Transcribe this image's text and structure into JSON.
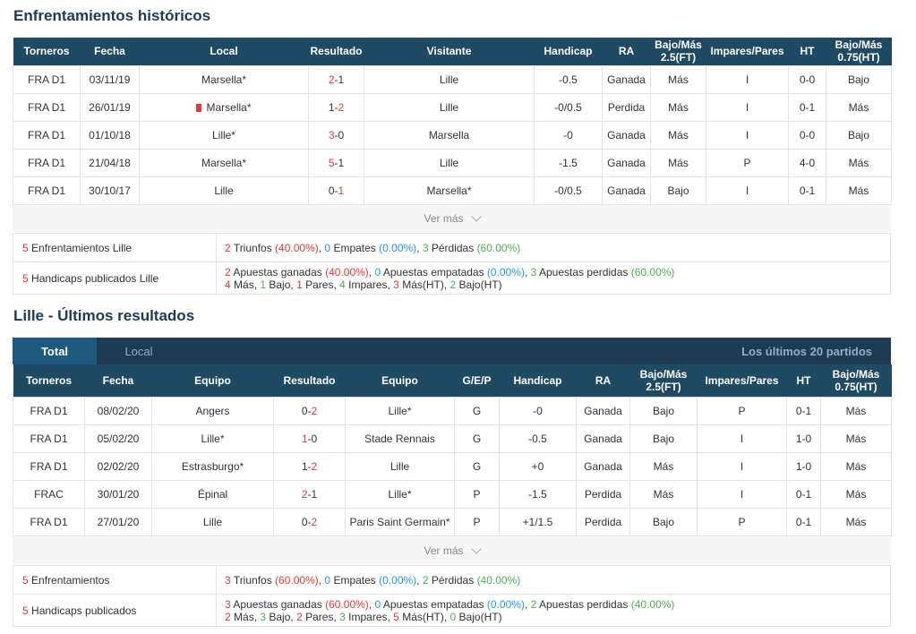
{
  "h2h": {
    "title": "Enfrentamientos históricos",
    "headers": [
      "Torneros",
      "Fecha",
      "Local",
      "Resultado",
      "Visitante",
      "Handicap",
      "RA",
      "Bajo/Más 2.5(FT)",
      "Impares/Pares",
      "HT",
      "Bajo/Más 0.75(HT)"
    ],
    "rows": [
      {
        "league": "FRA D1",
        "date": "03/11/19",
        "home": "Marsella*",
        "home_red": true,
        "home_flag": false,
        "score_h": "2",
        "score_a": "1",
        "away": "Lille",
        "away_red": false,
        "hcp": "-0.5",
        "ra": "Ganada",
        "ou": "Más",
        "oe": "I",
        "ht": "0-0",
        "ou2": "Bajo"
      },
      {
        "league": "FRA D1",
        "date": "26/01/19",
        "home": "Marsella*",
        "home_red": false,
        "home_flag": true,
        "score_h": "1",
        "score_a": "2",
        "away": "Lille",
        "away_red": true,
        "hcp": "-0/0.5",
        "ra": "Perdida",
        "ou": "Más",
        "oe": "I",
        "ht": "0-1",
        "ou2": "Más"
      },
      {
        "league": "FRA D1",
        "date": "01/10/18",
        "home": "Lille*",
        "home_red": true,
        "home_flag": false,
        "score_h": "3",
        "score_a": "0",
        "away": "Marsella",
        "away_red": false,
        "hcp": "-0",
        "ra": "Ganada",
        "ou": "Más",
        "oe": "I",
        "ht": "0-0",
        "ou2": "Bajo"
      },
      {
        "league": "FRA D1",
        "date": "21/04/18",
        "home": "Marsella*",
        "home_red": true,
        "home_flag": false,
        "score_h": "5",
        "score_a": "1",
        "away": "Lille",
        "away_red": false,
        "hcp": "-1.5",
        "ra": "Ganada",
        "ou": "Más",
        "oe": "P",
        "ht": "4-0",
        "ou2": "Más"
      },
      {
        "league": "FRA D1",
        "date": "30/10/17",
        "home": "Lille",
        "home_red": false,
        "home_flag": false,
        "score_h": "0",
        "score_a": "1",
        "away": "Marsella*",
        "away_red": true,
        "hcp": "-0/0.5",
        "ra": "Ganada",
        "ou": "Bajo",
        "oe": "I",
        "ht": "0-1",
        "ou2": "Más"
      }
    ],
    "ver_mas": "Ver más",
    "summary": {
      "row1_label_num": "5",
      "row1_label": " Enfrentamientos Lille",
      "row1_line": {
        "a": "2",
        "a_t": " Triunfos ",
        "a_p": "(40.00%)",
        "b": "0",
        "b_t": " Empates ",
        "b_p": "(0.00%)",
        "c": "3",
        "c_t": " Pérdidas ",
        "c_p": "(60.00%)"
      },
      "row2_label_num": "5",
      "row2_label": " Handicaps publicados Lille",
      "row2_line1": {
        "a": "2",
        "a_t": " Apuestas ganadas ",
        "a_p": "(40.00%)",
        "b": "0",
        "b_t": " Apuestas empatadas ",
        "b_p": "(0.00%)",
        "c": "3",
        "c_t": " Apuestas perdidas ",
        "c_p": "(60.00%)"
      },
      "row2_line2": {
        "n1": "4",
        "t1": " Más, ",
        "n2": "1",
        "t2": " Bajo, ",
        "n3": "1",
        "t3": " Pares, ",
        "n4": "4",
        "t4": " Impares, ",
        "n5": "3",
        "t5": " Más(HT), ",
        "n6": "2",
        "t6": " Bajo(HT)"
      }
    }
  },
  "recent": {
    "title": "Lille - Últimos resultados",
    "tab_total": "Total",
    "tab_local": "Local",
    "tab_right": "Los últimos 20 partidos",
    "headers": [
      "Torneros",
      "Fecha",
      "Equipo",
      "Resultado",
      "Equipo",
      "G/E/P",
      "Handicap",
      "RA",
      "Bajo/Más 2.5(FT)",
      "Impares/Pares",
      "HT",
      "Bajo/Más 0.75(HT)"
    ],
    "rows": [
      {
        "league": "FRA D1",
        "date": "08/02/20",
        "home": "Angers",
        "home_red": false,
        "score_h": "0",
        "score_a": "2",
        "away": "Lille*",
        "away_red": true,
        "gep": "G",
        "hcp": "-0",
        "ra": "Ganada",
        "ou": "Bajo",
        "oe": "P",
        "ht": "0-1",
        "ou2": "Más"
      },
      {
        "league": "FRA D1",
        "date": "05/02/20",
        "home": "Lille*",
        "home_red": true,
        "score_h": "1",
        "score_a": "0",
        "away": "Stade Rennais",
        "away_red": false,
        "gep": "G",
        "hcp": "-0.5",
        "ra": "Ganada",
        "ou": "Bajo",
        "oe": "I",
        "ht": "1-0",
        "ou2": "Más"
      },
      {
        "league": "FRA D1",
        "date": "02/02/20",
        "home": "Estrasburgo*",
        "home_red": false,
        "score_h": "1",
        "score_a": "2",
        "away": "Lille",
        "away_red": true,
        "gep": "G",
        "hcp": "+0",
        "ra": "Ganada",
        "ou": "Más",
        "oe": "I",
        "ht": "1-0",
        "ou2": "Más"
      },
      {
        "league": "FRAC",
        "date": "30/01/20",
        "home": "Épinal",
        "home_red": false,
        "score_h": "2",
        "score_a": "1",
        "away": "Lille*",
        "away_red": false,
        "gep": "P",
        "hcp": "-1.5",
        "ra": "Perdida",
        "ou": "Más",
        "oe": "I",
        "ht": "0-1",
        "ou2": "Más"
      },
      {
        "league": "FRA D1",
        "date": "27/01/20",
        "home": "Lille",
        "home_red": false,
        "score_h": "0",
        "score_a": "2",
        "away": "Paris Saint Germain*",
        "away_red": false,
        "gep": "P",
        "hcp": "+1/1.5",
        "ra": "Perdida",
        "ou": "Bajo",
        "oe": "P",
        "ht": "0-1",
        "ou2": "Más"
      }
    ],
    "ver_mas": "Ver más",
    "summary": {
      "row1_label_num": "5",
      "row1_label": " Enfrentamientos",
      "row1_line": {
        "a": "3",
        "a_t": " Triunfos ",
        "a_p": "(60.00%)",
        "b": "0",
        "b_t": " Empates ",
        "b_p": "(0.00%)",
        "c": "2",
        "c_t": " Pérdidas ",
        "c_p": "(40.00%)"
      },
      "row2_label_num": "5",
      "row2_label": " Handicaps publicados",
      "row2_line1": {
        "a": "3",
        "a_t": " Apuestas ganadas ",
        "a_p": "(60.00%)",
        "b": "0",
        "b_t": " Apuestas empatadas ",
        "b_p": "(0.00%)",
        "c": "2",
        "c_t": " Apuestas perdidas ",
        "c_p": "(40.00%)"
      },
      "row2_line2": {
        "n1": "2",
        "t1": " Más, ",
        "n2": "3",
        "t2": " Bajo, ",
        "n3": "2",
        "t3": " Pares, ",
        "n4": "3",
        "t4": " Impares, ",
        "n5": "5",
        "t5": " Más(HT), ",
        "n6": "0",
        "t6": " Bajo(HT)"
      }
    }
  },
  "colors": {
    "header_bg": "#1f4a63",
    "win": "#e53935",
    "loss": "#4caf50",
    "draw": "#2196f3",
    "link": "#1a73c8"
  }
}
